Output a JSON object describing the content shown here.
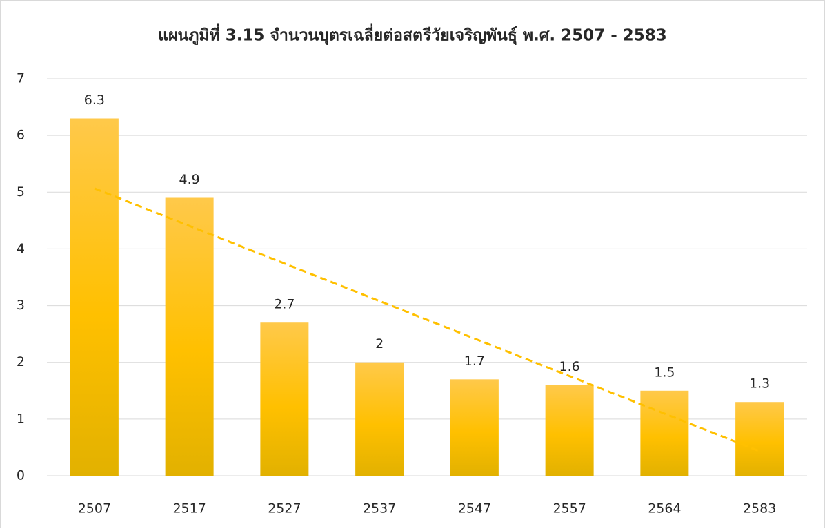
{
  "chart_data": {
    "type": "bar",
    "title": "แผนภูมิที่ 3.15 จำนวนบุตรเฉลี่ยต่อสตรีวัยเจริญพันธุ์ พ.ศ. 2507 - 2583",
    "categories": [
      "2507",
      "2517",
      "2527",
      "2537",
      "2547",
      "2557",
      "2564",
      "2583"
    ],
    "values": [
      6.3,
      4.9,
      2.7,
      2,
      1.7,
      1.6,
      1.5,
      1.3
    ],
    "color": "#ffc000",
    "ylim": [
      0,
      7
    ],
    "yticks": [
      0,
      1,
      2,
      3,
      4,
      5,
      6,
      7
    ],
    "grid": true,
    "data_labels": true,
    "trendline": {
      "type": "linear",
      "color": "#ffc000",
      "dashed": true
    }
  }
}
